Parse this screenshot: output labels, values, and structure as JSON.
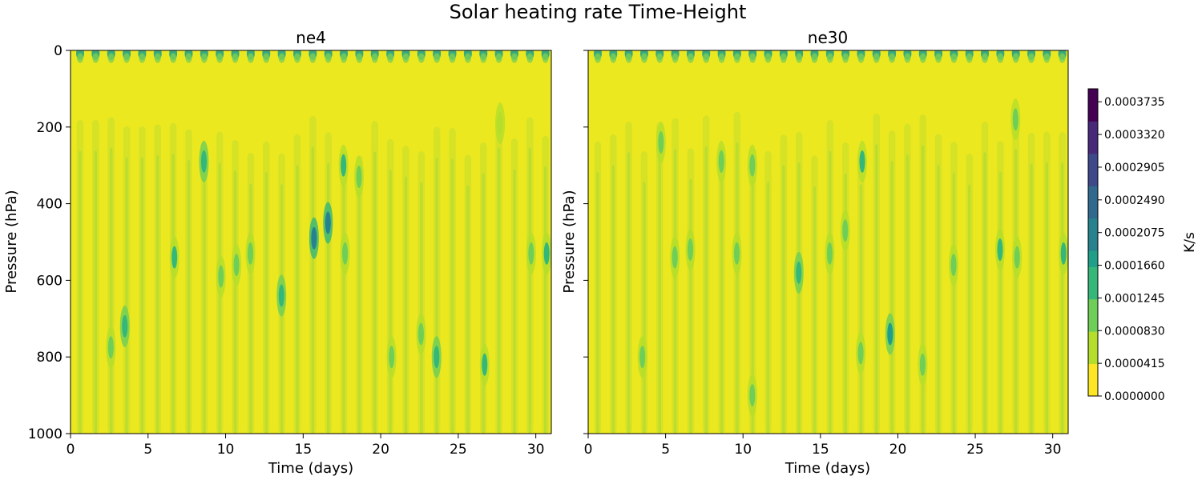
{
  "chart_data": {
    "type": "heatmap",
    "suptitle": "Solar heating rate Time-Height",
    "colormap": "viridis_r",
    "colorbar": {
      "label": "K/s",
      "ticks": [
        "0.0000000",
        "0.0000415",
        "0.0000830",
        "0.0001245",
        "0.0001660",
        "0.0002075",
        "0.0002490",
        "0.0002905",
        "0.0003320",
        "0.0003735"
      ],
      "range": [
        0,
        0.00039
      ]
    },
    "panels": [
      {
        "title": "ne4",
        "xlabel": "Time (days)",
        "ylabel": "Pressure (hPa)",
        "xlim": [
          0,
          31
        ],
        "ylim": [
          1000,
          0
        ],
        "xticks": [
          "0",
          "5",
          "10",
          "15",
          "20",
          "25",
          "30"
        ],
        "yticks": [
          "0",
          "200",
          "400",
          "600",
          "800",
          "1000"
        ],
        "features": [
          {
            "t": 3.5,
            "p": 720,
            "v": 0.00015
          },
          {
            "t": 2.6,
            "p": 775,
            "v": 0.0001
          },
          {
            "t": 6.7,
            "p": 540,
            "v": 0.00012
          },
          {
            "t": 8.6,
            "p": 290,
            "v": 0.00014
          },
          {
            "t": 9.7,
            "p": 590,
            "v": 0.0001
          },
          {
            "t": 10.7,
            "p": 560,
            "v": 0.00011
          },
          {
            "t": 11.6,
            "p": 530,
            "v": 0.00011
          },
          {
            "t": 13.6,
            "p": 640,
            "v": 0.00014
          },
          {
            "t": 15.7,
            "p": 490,
            "v": 0.00021
          },
          {
            "t": 16.6,
            "p": 450,
            "v": 0.0002
          },
          {
            "t": 17.7,
            "p": 530,
            "v": 0.00011
          },
          {
            "t": 17.6,
            "p": 300,
            "v": 0.00012
          },
          {
            "t": 18.6,
            "p": 330,
            "v": 9e-05
          },
          {
            "t": 20.7,
            "p": 800,
            "v": 0.0001
          },
          {
            "t": 23.6,
            "p": 800,
            "v": 0.00014
          },
          {
            "t": 22.6,
            "p": 740,
            "v": 0.0001
          },
          {
            "t": 26.7,
            "p": 820,
            "v": 0.00012
          },
          {
            "t": 27.7,
            "p": 190,
            "v": 7e-05
          },
          {
            "t": 29.7,
            "p": 530,
            "v": 0.00011
          },
          {
            "t": 30.7,
            "p": 530,
            "v": 0.00012
          }
        ]
      },
      {
        "title": "ne30",
        "xlabel": "Time (days)",
        "ylabel": "Pressure (hPa)",
        "xlim": [
          0,
          31
        ],
        "ylim": [
          1000,
          0
        ],
        "xticks": [
          "0",
          "5",
          "10",
          "15",
          "20",
          "25",
          "30"
        ],
        "yticks": [
          "0",
          "200",
          "400",
          "600",
          "800",
          "1000"
        ],
        "features": [
          {
            "t": 4.7,
            "p": 240,
            "v": 0.0001
          },
          {
            "t": 3.5,
            "p": 800,
            "v": 0.00011
          },
          {
            "t": 5.6,
            "p": 540,
            "v": 0.00011
          },
          {
            "t": 6.6,
            "p": 520,
            "v": 0.0001
          },
          {
            "t": 8.6,
            "p": 290,
            "v": 0.0001
          },
          {
            "t": 9.6,
            "p": 530,
            "v": 0.0001
          },
          {
            "t": 10.6,
            "p": 300,
            "v": 9e-05
          },
          {
            "t": 10.6,
            "p": 900,
            "v": 0.0001
          },
          {
            "t": 13.6,
            "p": 580,
            "v": 0.00014
          },
          {
            "t": 15.6,
            "p": 530,
            "v": 0.0001
          },
          {
            "t": 16.6,
            "p": 470,
            "v": 0.0001
          },
          {
            "t": 17.7,
            "p": 290,
            "v": 0.00012
          },
          {
            "t": 17.6,
            "p": 790,
            "v": 0.0001
          },
          {
            "t": 19.5,
            "p": 740,
            "v": 0.00016
          },
          {
            "t": 21.6,
            "p": 820,
            "v": 0.0001
          },
          {
            "t": 23.6,
            "p": 560,
            "v": 0.0001
          },
          {
            "t": 26.6,
            "p": 520,
            "v": 0.00012
          },
          {
            "t": 27.7,
            "p": 540,
            "v": 0.00011
          },
          {
            "t": 27.6,
            "p": 180,
            "v": 9e-05
          },
          {
            "t": 30.7,
            "p": 530,
            "v": 0.00013
          }
        ]
      }
    ]
  }
}
